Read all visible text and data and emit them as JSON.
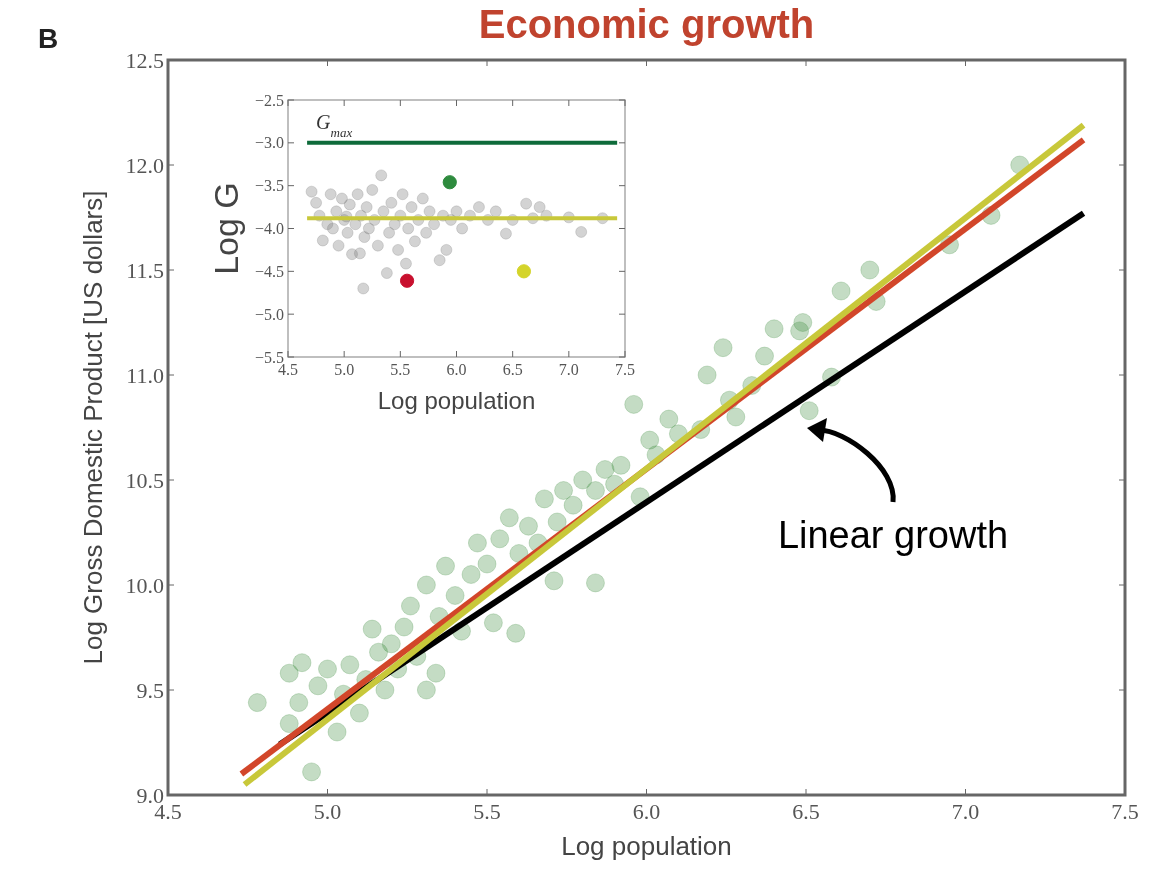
{
  "chart_data": [
    {
      "type": "scatter",
      "title": "Economic growth",
      "xlabel": "Log population",
      "ylabel": "Log Gross Domestic Product [US dollars]",
      "xlim": [
        4.5,
        7.5
      ],
      "ylim": [
        9.0,
        12.5
      ],
      "xticks": [
        {
          "value": 4.5,
          "label": "4.5"
        },
        {
          "value": 5,
          "label": "5.0"
        },
        {
          "value": 5.5,
          "label": "5.5"
        },
        {
          "value": 6,
          "label": "6.0"
        },
        {
          "value": 6.5,
          "label": "6.5"
        },
        {
          "value": 7,
          "label": "7.0"
        },
        {
          "value": 7.5,
          "label": "7.5"
        }
      ],
      "yticks": [
        {
          "value": 9,
          "label": "9.0"
        },
        {
          "value": 9.5,
          "label": "9.5"
        },
        {
          "value": 10,
          "label": "10.0"
        },
        {
          "value": 10.5,
          "label": "10.5"
        },
        {
          "value": 11,
          "label": "11.0"
        },
        {
          "value": 11.5,
          "label": "11.5"
        },
        {
          "value": 12,
          "label": "12.0"
        },
        {
          "value": 12.5,
          "label": "12.5"
        }
      ],
      "annotations": [
        "B",
        "Linear growth"
      ],
      "series": [
        {
          "marker": "circle",
          "color": "#3c8c3c",
          "x": [
            4.78,
            4.95,
            4.88,
            4.92,
            4.91,
            4.88,
            4.97,
            5.0,
            5.03,
            5.05,
            5.07,
            5.1,
            5.12,
            5.14,
            5.16,
            5.18,
            5.2,
            5.22,
            5.24,
            5.26,
            5.28,
            5.31,
            5.31,
            5.34,
            5.35,
            5.37,
            5.4,
            5.42,
            5.45,
            5.47,
            5.5,
            5.52,
            5.54,
            5.57,
            5.59,
            5.6,
            5.63,
            5.66,
            5.68,
            5.71,
            5.72,
            5.74,
            5.77,
            5.8,
            5.84,
            5.84,
            5.87,
            5.9,
            5.92,
            5.96,
            5.98,
            6.01,
            6.03,
            6.07,
            6.1,
            6.17,
            6.19,
            6.24,
            6.26,
            6.28,
            6.33,
            6.37,
            6.4,
            6.48,
            6.49,
            6.51,
            6.58,
            6.61,
            6.7,
            6.72,
            6.95,
            7.08,
            7.17
          ],
          "values": [
            9.44,
            9.11,
            9.58,
            9.63,
            9.44,
            9.34,
            9.52,
            9.6,
            9.3,
            9.48,
            9.62,
            9.39,
            9.55,
            9.79,
            9.68,
            9.5,
            9.72,
            9.6,
            9.8,
            9.9,
            9.66,
            9.5,
            10.0,
            9.58,
            9.85,
            10.09,
            9.95,
            9.78,
            10.05,
            10.2,
            10.1,
            9.82,
            10.22,
            10.32,
            9.77,
            10.15,
            10.28,
            10.2,
            10.41,
            10.02,
            10.3,
            10.45,
            10.38,
            10.5,
            10.01,
            10.45,
            10.55,
            10.48,
            10.57,
            10.86,
            10.42,
            10.69,
            10.62,
            10.79,
            10.72,
            10.74,
            11.0,
            11.13,
            10.88,
            10.8,
            10.95,
            11.09,
            11.22,
            11.21,
            11.25,
            10.83,
            10.99,
            11.4,
            11.5,
            11.35,
            11.62,
            11.76,
            12.0
          ]
        },
        {
          "type": "line",
          "color": "#000000",
          "x": [
            4.85,
            7.37
          ],
          "values": [
            9.24,
            11.77
          ]
        },
        {
          "type": "line",
          "color": "#d2462a",
          "x": [
            4.73,
            7.37
          ],
          "values": [
            9.1,
            12.12
          ]
        },
        {
          "type": "line",
          "color": "#c8c83a",
          "x": [
            4.74,
            7.37
          ],
          "values": [
            9.05,
            12.19
          ]
        }
      ]
    },
    {
      "type": "scatter",
      "xlabel": "Log population",
      "ylabel": "Log G",
      "xlim": [
        4.5,
        7.5
      ],
      "ylim": [
        -5.5,
        -2.5
      ],
      "xticks": [
        {
          "value": 4.5,
          "label": "4.5"
        },
        {
          "value": 5,
          "label": "5.0"
        },
        {
          "value": 5.5,
          "label": "5.5"
        },
        {
          "value": 6,
          "label": "6.0"
        },
        {
          "value": 6.5,
          "label": "6.5"
        },
        {
          "value": 7,
          "label": "7.0"
        },
        {
          "value": 7.5,
          "label": "7.5"
        }
      ],
      "yticks": [
        {
          "value": -5.5,
          "label": "−5.5"
        },
        {
          "value": -5,
          "label": "−5.0"
        },
        {
          "value": -4.5,
          "label": "−4.5"
        },
        {
          "value": -4,
          "label": "−4.0"
        },
        {
          "value": -3.5,
          "label": "−3.5"
        },
        {
          "value": -3,
          "label": "−3.0"
        },
        {
          "value": -2.5,
          "label": "−2.5"
        }
      ],
      "annotations": [
        {
          "text": "G$_{max}$",
          "x": 4.75,
          "y": -3.0
        }
      ],
      "series": [
        {
          "marker": "circle",
          "color": "#808080",
          "x": [
            4.71,
            4.75,
            4.78,
            4.81,
            4.85,
            4.88,
            4.9,
            4.93,
            4.95,
            4.98,
            5.0,
            5.02,
            5.03,
            5.05,
            5.07,
            5.1,
            5.12,
            5.14,
            5.15,
            5.17,
            5.18,
            5.2,
            5.22,
            5.25,
            5.27,
            5.3,
            5.33,
            5.35,
            5.38,
            5.4,
            5.42,
            5.45,
            5.48,
            5.5,
            5.52,
            5.55,
            5.57,
            5.6,
            5.63,
            5.66,
            5.7,
            5.73,
            5.76,
            5.8,
            5.85,
            5.88,
            5.91,
            5.95,
            6.0,
            6.05,
            6.12,
            6.2,
            6.28,
            6.35,
            6.44,
            6.5,
            6.62,
            6.68,
            6.74,
            6.8,
            7.0,
            7.11,
            7.3
          ],
          "values": [
            -3.57,
            -3.7,
            -3.85,
            -4.14,
            -3.95,
            -3.6,
            -4.0,
            -3.8,
            -4.2,
            -3.65,
            -3.9,
            -3.86,
            -4.05,
            -3.72,
            -4.3,
            -3.95,
            -3.6,
            -4.29,
            -3.85,
            -4.7,
            -4.1,
            -3.75,
            -4.0,
            -3.55,
            -3.9,
            -4.2,
            -3.38,
            -3.8,
            -4.52,
            -4.05,
            -3.7,
            -3.95,
            -4.25,
            -3.85,
            -3.6,
            -4.41,
            -4.0,
            -3.75,
            -4.15,
            -3.9,
            -3.65,
            -4.05,
            -3.8,
            -3.95,
            -4.37,
            -3.85,
            -4.25,
            -3.9,
            -3.8,
            -4.0,
            -3.85,
            -3.75,
            -3.9,
            -3.8,
            -4.06,
            -3.9,
            -3.71,
            -3.88,
            -3.75,
            -3.85,
            -3.87,
            -4.04,
            -3.88
          ]
        },
        {
          "type": "line",
          "color": "#0e6b3a",
          "x": [
            4.67,
            7.43
          ],
          "values": [
            -3.0,
            -3.0
          ]
        },
        {
          "type": "line",
          "color": "#c8c83a",
          "x": [
            4.67,
            7.43
          ],
          "values": [
            -3.88,
            -3.88
          ]
        },
        {
          "marker": "circle",
          "color": "#2e8b3e",
          "x": [
            5.94
          ],
          "values": [
            -3.46
          ]
        },
        {
          "marker": "circle",
          "color": "#c8102e",
          "x": [
            5.56
          ],
          "values": [
            -4.61
          ]
        },
        {
          "marker": "circle",
          "color": "#d4d42a",
          "x": [
            6.6
          ],
          "values": [
            -4.5
          ]
        }
      ]
    }
  ]
}
